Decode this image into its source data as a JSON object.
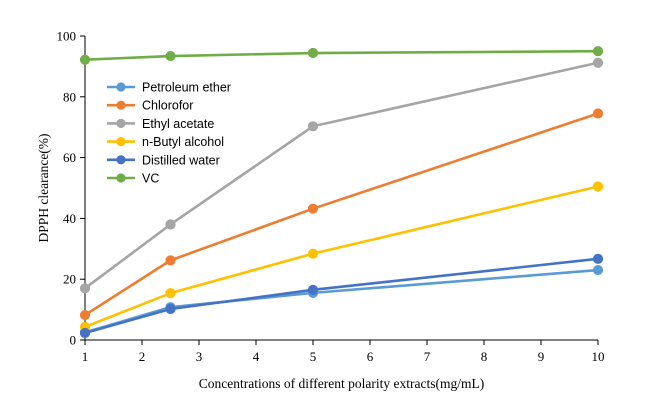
{
  "chart_data": {
    "type": "line",
    "title": "",
    "xlabel": "Concentrations of different polarity extracts(mg/mL)",
    "ylabel": "DPPH  clearance(%)",
    "xlim": [
      1,
      10
    ],
    "ylim": [
      0,
      100
    ],
    "x_ticks": [
      "1",
      "2",
      "3",
      "4",
      "5",
      "6",
      "7",
      "8",
      "9",
      "10"
    ],
    "y_ticks": [
      "0",
      "20",
      "40",
      "60",
      "80",
      "100"
    ],
    "grid": false,
    "legend_position": "top-left",
    "x": [
      1,
      2.5,
      5,
      10
    ],
    "series": [
      {
        "name": "Petroleum ether",
        "color": "#5B9BD5",
        "values": [
          2.5,
          10.8,
          15.5,
          23.0
        ]
      },
      {
        "name": "Chlorofor",
        "color": "#ED7D31",
        "values": [
          8.2,
          26.2,
          43.2,
          74.5
        ]
      },
      {
        "name": "Ethyl acetate",
        "color": "#A5A5A5",
        "values": [
          17.0,
          38.0,
          70.3,
          91.2
        ]
      },
      {
        "name": "n-Butyl alcohol",
        "color": "#FFC000",
        "values": [
          4.3,
          15.4,
          28.4,
          50.5
        ]
      },
      {
        "name": "Distilled water",
        "color": "#4472C4",
        "values": [
          2.3,
          10.2,
          16.5,
          26.7
        ]
      },
      {
        "name": "VC",
        "color": "#70AD47",
        "values": [
          92.2,
          93.4,
          94.4,
          95.0
        ]
      }
    ]
  }
}
